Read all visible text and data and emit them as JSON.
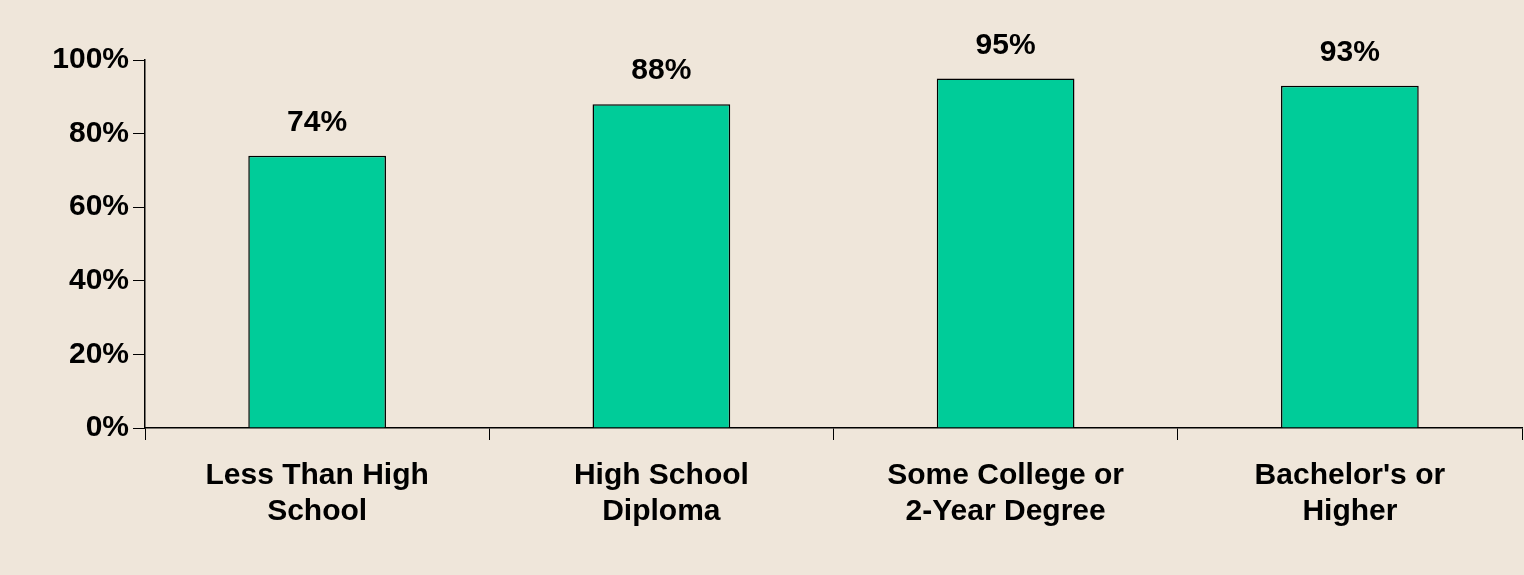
{
  "chart_data": {
    "type": "bar",
    "categories": [
      "Less Than High School",
      "High School Diploma",
      "Some College or 2-Year Degree",
      "Bachelor's or Higher"
    ],
    "values": [
      74,
      88,
      95,
      93
    ],
    "value_labels": [
      "74%",
      "88%",
      "95%",
      "93%"
    ],
    "color": "#00cc99",
    "ylim": [
      0,
      100
    ],
    "yticks": [
      {
        "value": 0,
        "label": "0%"
      },
      {
        "value": 20,
        "label": "20%"
      },
      {
        "value": 40,
        "label": "40%"
      },
      {
        "value": 60,
        "label": "60%"
      },
      {
        "value": 80,
        "label": "80%"
      },
      {
        "value": 100,
        "label": "100%"
      }
    ],
    "grid": false,
    "legend": false
  }
}
